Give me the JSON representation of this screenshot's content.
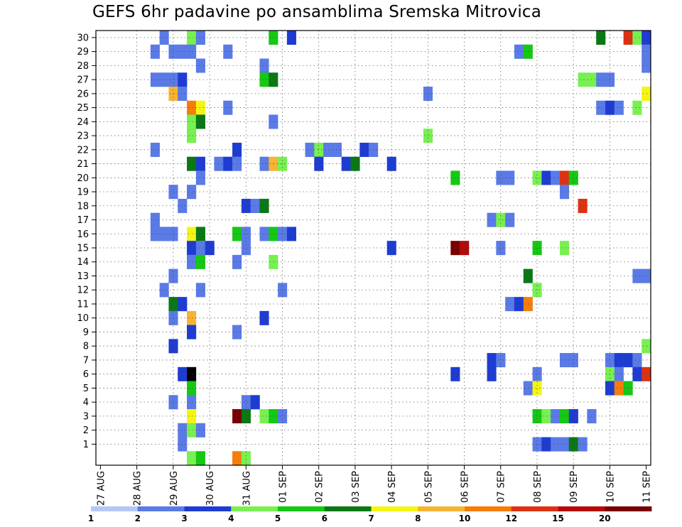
{
  "chart_data": {
    "type": "heatmap",
    "title": "GEFS 6hr padavine po ansamblima Sremska Mitrovica",
    "xlabel": "",
    "ylabel": "",
    "x_tick_labels": [
      "27 AUG",
      "28 AUG",
      "29 AUG",
      "30 AUG",
      "31 AUG",
      "01 SEP",
      "02 SEP",
      "03 SEP",
      "04 SEP",
      "05 SEP",
      "06 SEP",
      "07 SEP",
      "08 SEP",
      "09 SEP",
      "10 SEP",
      "11 SEP"
    ],
    "y_tick_labels": [
      "1",
      "2",
      "3",
      "4",
      "5",
      "6",
      "7",
      "8",
      "9",
      "10",
      "11",
      "12",
      "13",
      "14",
      "15",
      "16",
      "17",
      "18",
      "19",
      "20",
      "21",
      "22",
      "23",
      "24",
      "25",
      "26",
      "27",
      "28",
      "29",
      "30"
    ],
    "x_unit": "6-hour step since 27 AUG 00Z",
    "xlim": [
      0,
      60
    ],
    "ylim": [
      0,
      30
    ],
    "grid": true,
    "legend": {
      "placement": "bottom",
      "labels": [
        "1",
        "2",
        "3",
        "4",
        "5",
        "6",
        "7",
        "8",
        "10",
        "12",
        "15",
        "20"
      ],
      "colors": [
        "#b4c8f5",
        "#5a7ae6",
        "#1e3cd2",
        "#78f050",
        "#14c814",
        "#0a7814",
        "#f5f514",
        "#f5b432",
        "#f57d0a",
        "#dc3214",
        "#b40a0a",
        "#780000"
      ]
    },
    "cells": [
      [
        7,
        30,
        1
      ],
      [
        10,
        30,
        3
      ],
      [
        11,
        30,
        1
      ],
      [
        19,
        30,
        4
      ],
      [
        21,
        30,
        2
      ],
      [
        55,
        30,
        5
      ],
      [
        58,
        30,
        9
      ],
      [
        59,
        30,
        3
      ],
      [
        60,
        30,
        2
      ],
      [
        6,
        29,
        1
      ],
      [
        8,
        29,
        1
      ],
      [
        9,
        29,
        1
      ],
      [
        10,
        29,
        1
      ],
      [
        14,
        29,
        1
      ],
      [
        46,
        29,
        1
      ],
      [
        47,
        29,
        4
      ],
      [
        60,
        29,
        1
      ],
      [
        11,
        28,
        1
      ],
      [
        18,
        28,
        1
      ],
      [
        60,
        28,
        1
      ],
      [
        6,
        27,
        1
      ],
      [
        7,
        27,
        1
      ],
      [
        8,
        27,
        1
      ],
      [
        9,
        27,
        2
      ],
      [
        18,
        27,
        4
      ],
      [
        19,
        27,
        5
      ],
      [
        53,
        27,
        3
      ],
      [
        54,
        27,
        3
      ],
      [
        55,
        27,
        1
      ],
      [
        56,
        27,
        1
      ],
      [
        8,
        26,
        7
      ],
      [
        9,
        26,
        1
      ],
      [
        36,
        26,
        1
      ],
      [
        60,
        26,
        6
      ],
      [
        10,
        25,
        8
      ],
      [
        11,
        25,
        6
      ],
      [
        14,
        25,
        1
      ],
      [
        55,
        25,
        1
      ],
      [
        56,
        25,
        2
      ],
      [
        57,
        25,
        1
      ],
      [
        59,
        25,
        3
      ],
      [
        10,
        24,
        3
      ],
      [
        11,
        24,
        5
      ],
      [
        19,
        24,
        1
      ],
      [
        10,
        23,
        3
      ],
      [
        36,
        23,
        3
      ],
      [
        6,
        22,
        1
      ],
      [
        15,
        22,
        2
      ],
      [
        23,
        22,
        1
      ],
      [
        24,
        22,
        3
      ],
      [
        25,
        22,
        1
      ],
      [
        26,
        22,
        1
      ],
      [
        29,
        22,
        2
      ],
      [
        30,
        22,
        1
      ],
      [
        10,
        21,
        5
      ],
      [
        11,
        21,
        2
      ],
      [
        13,
        21,
        1
      ],
      [
        14,
        21,
        2
      ],
      [
        15,
        21,
        1
      ],
      [
        18,
        21,
        1
      ],
      [
        19,
        21,
        7
      ],
      [
        20,
        21,
        3
      ],
      [
        24,
        21,
        2
      ],
      [
        27,
        21,
        2
      ],
      [
        28,
        21,
        5
      ],
      [
        32,
        21,
        2
      ],
      [
        11,
        20,
        1
      ],
      [
        39,
        20,
        4
      ],
      [
        44,
        20,
        1
      ],
      [
        45,
        20,
        1
      ],
      [
        48,
        20,
        3
      ],
      [
        49,
        20,
        2
      ],
      [
        50,
        20,
        1
      ],
      [
        51,
        20,
        9
      ],
      [
        52,
        20,
        4
      ],
      [
        8,
        19,
        1
      ],
      [
        10,
        19,
        1
      ],
      [
        51,
        19,
        1
      ],
      [
        9,
        18,
        1
      ],
      [
        16,
        18,
        2
      ],
      [
        17,
        18,
        1
      ],
      [
        18,
        18,
        5
      ],
      [
        53,
        18,
        9
      ],
      [
        6,
        17,
        1
      ],
      [
        43,
        17,
        1
      ],
      [
        44,
        17,
        3
      ],
      [
        45,
        17,
        1
      ],
      [
        6,
        16,
        1
      ],
      [
        7,
        16,
        1
      ],
      [
        8,
        16,
        1
      ],
      [
        10,
        16,
        6
      ],
      [
        11,
        16,
        5
      ],
      [
        15,
        16,
        4
      ],
      [
        16,
        16,
        1
      ],
      [
        18,
        16,
        1
      ],
      [
        19,
        16,
        4
      ],
      [
        20,
        16,
        1
      ],
      [
        21,
        16,
        2
      ],
      [
        10,
        15,
        2
      ],
      [
        11,
        15,
        1
      ],
      [
        12,
        15,
        2
      ],
      [
        16,
        15,
        1
      ],
      [
        32,
        15,
        2
      ],
      [
        39,
        15,
        11
      ],
      [
        40,
        15,
        10
      ],
      [
        44,
        15,
        1
      ],
      [
        48,
        15,
        4
      ],
      [
        51,
        15,
        3
      ],
      [
        10,
        14,
        1
      ],
      [
        11,
        14,
        4
      ],
      [
        15,
        14,
        1
      ],
      [
        19,
        14,
        3
      ],
      [
        8,
        13,
        1
      ],
      [
        47,
        13,
        5
      ],
      [
        59,
        13,
        1
      ],
      [
        60,
        13,
        1
      ],
      [
        7,
        12,
        1
      ],
      [
        11,
        12,
        1
      ],
      [
        20,
        12,
        1
      ],
      [
        48,
        12,
        3
      ],
      [
        8,
        11,
        5
      ],
      [
        9,
        11,
        2
      ],
      [
        45,
        11,
        1
      ],
      [
        46,
        11,
        2
      ],
      [
        47,
        11,
        8
      ],
      [
        8,
        10,
        1
      ],
      [
        10,
        10,
        7
      ],
      [
        18,
        10,
        2
      ],
      [
        10,
        9,
        2
      ],
      [
        15,
        9,
        1
      ],
      [
        8,
        8,
        2
      ],
      [
        60,
        8,
        3
      ],
      [
        43,
        7,
        2
      ],
      [
        44,
        7,
        1
      ],
      [
        51,
        7,
        1
      ],
      [
        52,
        7,
        1
      ],
      [
        56,
        7,
        1
      ],
      [
        57,
        7,
        2
      ],
      [
        58,
        7,
        2
      ],
      [
        59,
        7,
        1
      ],
      [
        9,
        6,
        2
      ],
      [
        10,
        6,
        12
      ],
      [
        39,
        6,
        2
      ],
      [
        43,
        6,
        2
      ],
      [
        48,
        6,
        1
      ],
      [
        56,
        6,
        3
      ],
      [
        57,
        6,
        1
      ],
      [
        59,
        6,
        2
      ],
      [
        60,
        6,
        9
      ],
      [
        10,
        5,
        4
      ],
      [
        47,
        5,
        1
      ],
      [
        48,
        5,
        6
      ],
      [
        56,
        5,
        2
      ],
      [
        57,
        5,
        8
      ],
      [
        58,
        5,
        4
      ],
      [
        8,
        4,
        1
      ],
      [
        10,
        4,
        1
      ],
      [
        16,
        4,
        1
      ],
      [
        17,
        4,
        2
      ],
      [
        10,
        3,
        6
      ],
      [
        15,
        3,
        11
      ],
      [
        16,
        3,
        5
      ],
      [
        18,
        3,
        3
      ],
      [
        19,
        3,
        4
      ],
      [
        20,
        3,
        1
      ],
      [
        48,
        3,
        4
      ],
      [
        49,
        3,
        3
      ],
      [
        50,
        3,
        1
      ],
      [
        51,
        3,
        4
      ],
      [
        52,
        3,
        2
      ],
      [
        54,
        3,
        1
      ],
      [
        9,
        2,
        1
      ],
      [
        10,
        2,
        3
      ],
      [
        11,
        2,
        1
      ],
      [
        9,
        1,
        1
      ],
      [
        48,
        1,
        1
      ],
      [
        49,
        1,
        2
      ],
      [
        50,
        1,
        1
      ],
      [
        51,
        1,
        1
      ],
      [
        52,
        1,
        5
      ],
      [
        53,
        1,
        1
      ],
      [
        10,
        0,
        3
      ],
      [
        11,
        0,
        4
      ],
      [
        15,
        0,
        8
      ],
      [
        16,
        0,
        3
      ]
    ]
  }
}
